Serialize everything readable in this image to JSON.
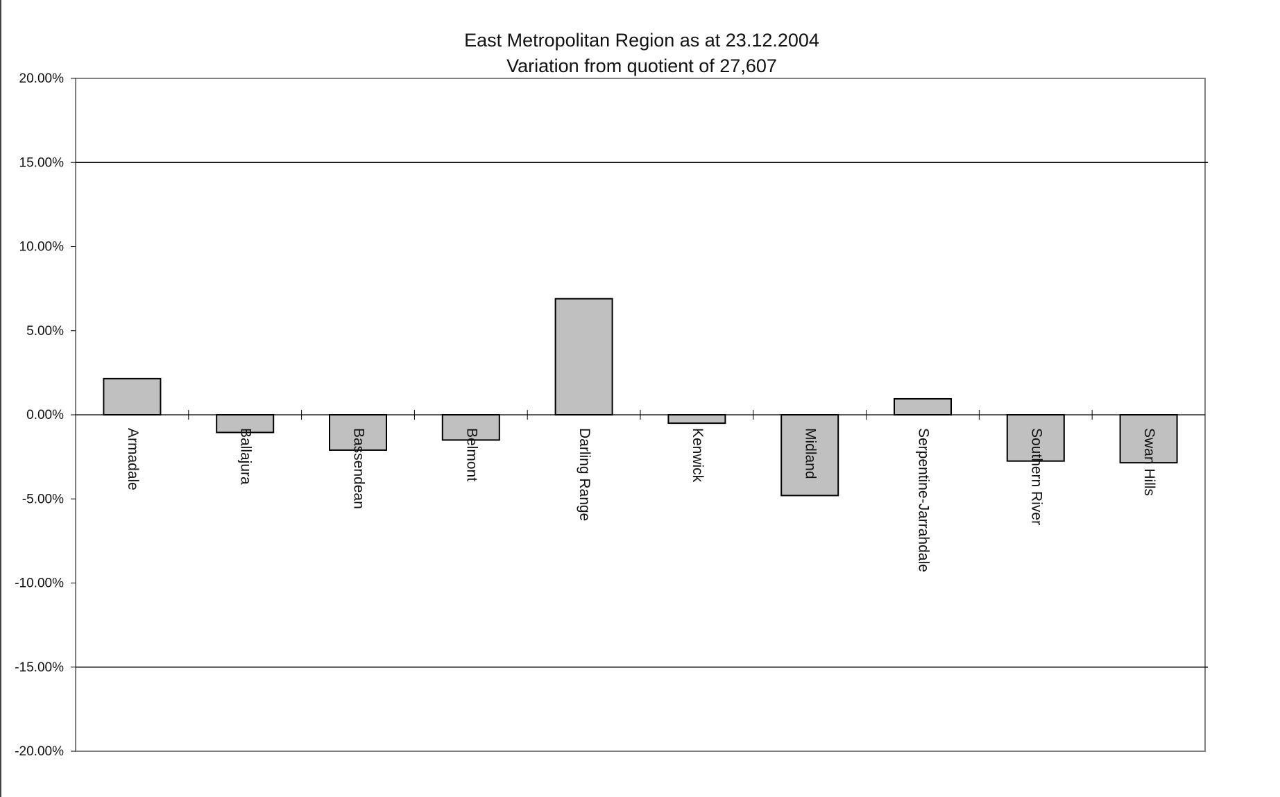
{
  "chart_data": {
    "type": "bar",
    "title": "East Metropolitan Region as at 23.12.2004",
    "subtitle": "Variation from quotient of 27,607",
    "xlabel": "",
    "ylabel": "",
    "categories": [
      "Armadale",
      "Ballajura",
      "Bassendean",
      "Belmont",
      "Darling Range",
      "Kenwick",
      "Midland",
      "Serpentine-Jarrahdale",
      "Southern River",
      "Swan Hills"
    ],
    "values": [
      2.15,
      -1.05,
      -2.1,
      -1.5,
      6.9,
      -0.5,
      -4.8,
      0.95,
      -2.75,
      -2.85
    ],
    "value_unit": "%",
    "ylim": [
      -20,
      20
    ],
    "yticks": [
      20,
      15,
      10,
      5,
      0,
      -5,
      -10,
      -15,
      -20
    ],
    "ytick_labels": [
      "20.00%",
      "15.00%",
      "10.00%",
      "5.00%",
      "0.00%",
      "-5.00%",
      "-10.00%",
      "-15.00%",
      "-20.00%"
    ],
    "reference_lines": [
      15,
      -15
    ],
    "grid": false,
    "legend": "none",
    "bar_color": "#c0c0c0",
    "bar_edge_color": "#000000",
    "axis_frame_color": "#808080"
  }
}
